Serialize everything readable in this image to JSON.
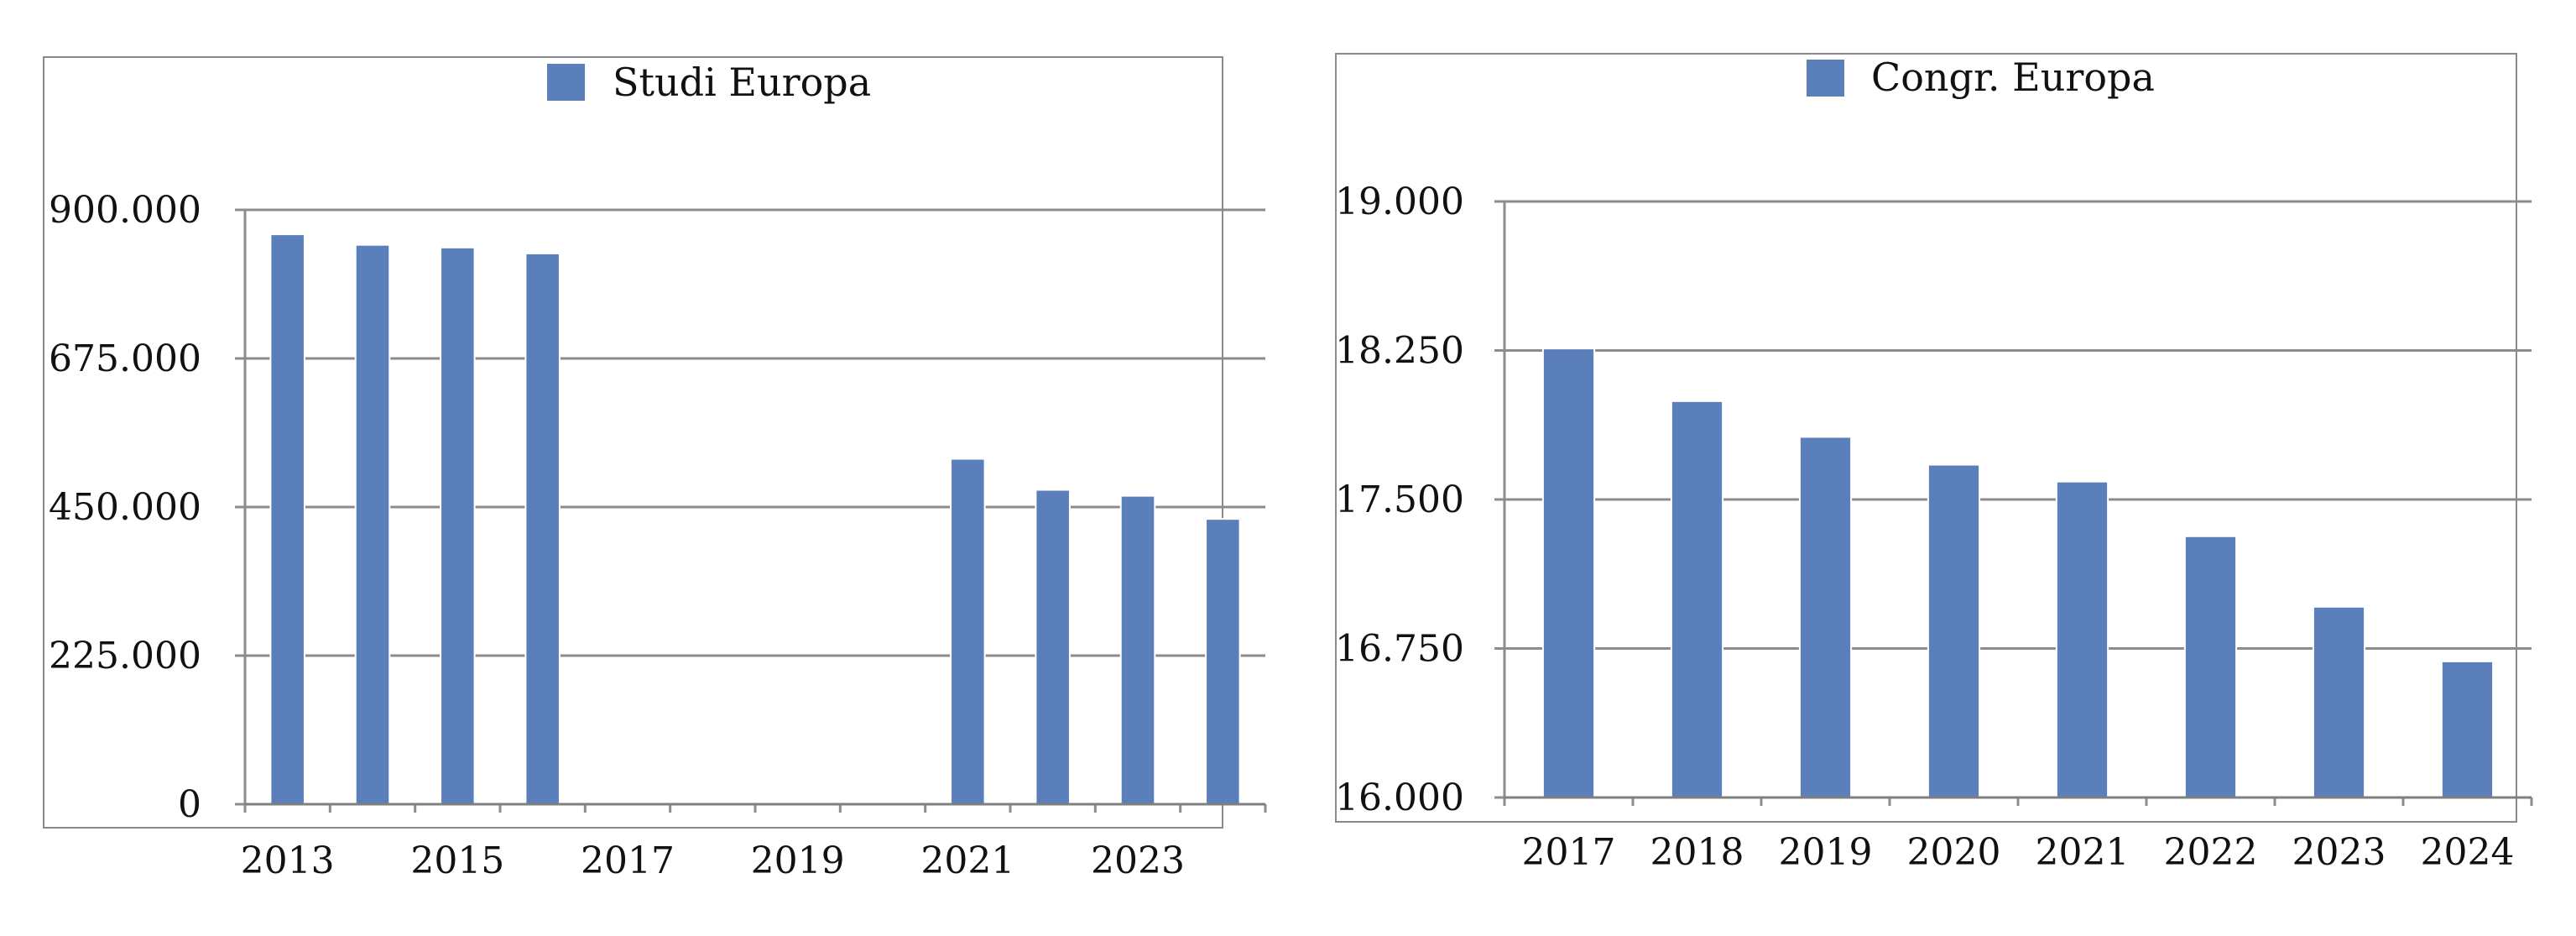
{
  "chart_data": [
    {
      "type": "bar",
      "legend": "Studi Europa",
      "legend_position": "top-center",
      "color": "#5b7fba",
      "categories": [
        "2013",
        "2014",
        "2015",
        "2016",
        "2017",
        "2018",
        "2019",
        "2020",
        "2021",
        "2022",
        "2023",
        "2024"
      ],
      "x_tick_labels": [
        "2013",
        "2015",
        "2017",
        "2019",
        "2021",
        "2023"
      ],
      "values": [
        863000,
        847000,
        843000,
        834000,
        null,
        null,
        null,
        null,
        523000,
        476000,
        467000,
        432000
      ],
      "ylim": [
        0,
        900000
      ],
      "y_ticks": [
        0,
        225000,
        450000,
        675000,
        900000
      ],
      "y_tick_labels": [
        "0",
        "225.000",
        "450.000",
        "675.000",
        "900.000"
      ],
      "grid": true
    },
    {
      "type": "bar",
      "legend": "Congr. Europa",
      "legend_position": "top-center",
      "color": "#5b7fba",
      "categories": [
        "2017",
        "2018",
        "2019",
        "2020",
        "2021",
        "2022",
        "2023",
        "2024"
      ],
      "x_tick_labels": [
        "2017",
        "2018",
        "2019",
        "2020",
        "2021",
        "2022",
        "2023",
        "2024"
      ],
      "values": [
        18260,
        17995,
        17815,
        17675,
        17590,
        17315,
        16960,
        16685
      ],
      "ylim": [
        16000,
        19000
      ],
      "y_ticks": [
        16000,
        16750,
        17500,
        18250,
        19000
      ],
      "y_tick_labels": [
        "16.000",
        "16.750",
        "17.500",
        "18.250",
        "19.000"
      ],
      "grid": true
    }
  ]
}
